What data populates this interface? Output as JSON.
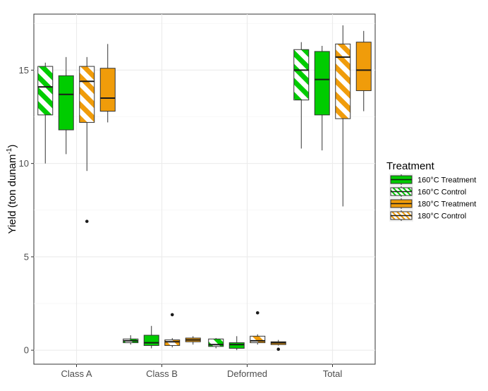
{
  "chart_data": {
    "type": "boxplot",
    "ylabel": "Yield (ton dunam",
    "ylabel_sup": "-1",
    "ylabel_close": ")",
    "ylim": [
      -0.75,
      18.0
    ],
    "y_ticks": [
      0,
      5,
      10,
      15
    ],
    "y_tick_labels": [
      "0",
      "5",
      "10",
      "15"
    ],
    "categories": [
      "Class A",
      "Class B",
      "Deformed",
      "Total"
    ],
    "legend": {
      "title": "Treatment",
      "position": "right",
      "entries": [
        {
          "name": "160°C Treatment",
          "color": "#00CC00",
          "pattern": "solid"
        },
        {
          "name": "160°C Control",
          "color": "#00CC00",
          "pattern": "stripe"
        },
        {
          "name": "180°C Treatment",
          "color": "#F09C0A",
          "pattern": "solid"
        },
        {
          "name": "180°C Control",
          "color": "#F09C0A",
          "pattern": "stripe"
        }
      ]
    },
    "grid": true,
    "boxes": [
      {
        "category": "Class A",
        "series": "160°C Control",
        "min": 10.0,
        "q1": 12.6,
        "median": 14.1,
        "q3": 15.2,
        "max": 15.4,
        "outliers": []
      },
      {
        "category": "Class A",
        "series": "160°C Treatment",
        "min": 10.5,
        "q1": 11.8,
        "median": 13.7,
        "q3": 14.7,
        "max": 15.7,
        "outliers": []
      },
      {
        "category": "Class A",
        "series": "180°C Control",
        "min": 9.6,
        "q1": 12.2,
        "median": 14.4,
        "q3": 15.2,
        "max": 15.7,
        "outliers": [
          6.9
        ]
      },
      {
        "category": "Class A",
        "series": "180°C Treatment",
        "min": 12.2,
        "q1": 12.8,
        "median": 13.5,
        "q3": 15.1,
        "max": 16.4,
        "outliers": []
      },
      {
        "category": "Class B",
        "series": "160°C Control",
        "min": 0.3,
        "q1": 0.4,
        "median": 0.5,
        "q3": 0.6,
        "max": 0.8,
        "outliers": []
      },
      {
        "category": "Class B",
        "series": "160°C Treatment",
        "min": 0.1,
        "q1": 0.25,
        "median": 0.4,
        "q3": 0.8,
        "max": 1.3,
        "outliers": []
      },
      {
        "category": "Class B",
        "series": "180°C Control",
        "min": 0.15,
        "q1": 0.25,
        "median": 0.45,
        "q3": 0.55,
        "max": 0.65,
        "outliers": [
          1.9
        ]
      },
      {
        "category": "Class B",
        "series": "180°C Treatment",
        "min": 0.3,
        "q1": 0.45,
        "median": 0.55,
        "q3": 0.65,
        "max": 0.75,
        "outliers": []
      },
      {
        "category": "Deformed",
        "series": "160°C Control",
        "min": 0.1,
        "q1": 0.2,
        "median": 0.3,
        "q3": 0.6,
        "max": 0.65,
        "outliers": []
      },
      {
        "category": "Deformed",
        "series": "160°C Treatment",
        "min": 0.0,
        "q1": 0.1,
        "median": 0.3,
        "q3": 0.4,
        "max": 0.75,
        "outliers": []
      },
      {
        "category": "Deformed",
        "series": "180°C Control",
        "min": 0.3,
        "q1": 0.4,
        "median": 0.5,
        "q3": 0.75,
        "max": 0.85,
        "outliers": [
          2.0
        ]
      },
      {
        "category": "Deformed",
        "series": "180°C Treatment",
        "min": 0.25,
        "q1": 0.3,
        "median": 0.4,
        "q3": 0.45,
        "max": 0.55,
        "outliers": [
          0.05
        ]
      },
      {
        "category": "Total",
        "series": "160°C Control",
        "min": 10.8,
        "q1": 13.4,
        "median": 15.0,
        "q3": 16.1,
        "max": 16.5,
        "outliers": []
      },
      {
        "category": "Total",
        "series": "160°C Treatment",
        "min": 10.7,
        "q1": 12.6,
        "median": 14.5,
        "q3": 16.0,
        "max": 16.3,
        "outliers": []
      },
      {
        "category": "Total",
        "series": "180°C Control",
        "min": 7.7,
        "q1": 12.4,
        "median": 15.7,
        "q3": 16.4,
        "max": 17.4,
        "outliers": []
      },
      {
        "category": "Total",
        "series": "180°C Treatment",
        "min": 12.8,
        "q1": 13.9,
        "median": 15.0,
        "q3": 16.5,
        "max": 17.1,
        "outliers": []
      }
    ]
  }
}
